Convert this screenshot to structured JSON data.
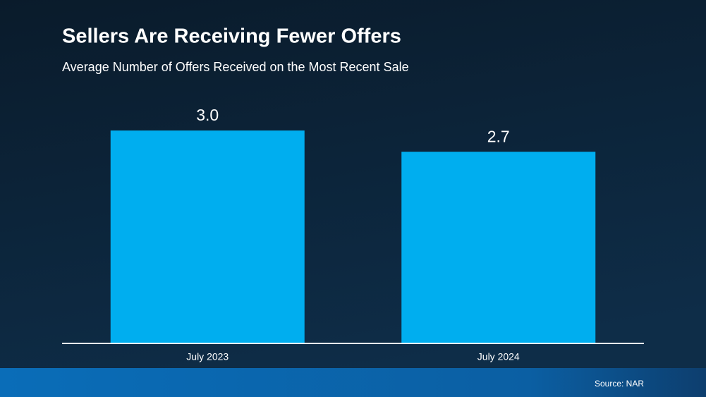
{
  "chart_data": {
    "type": "bar",
    "title": "Sellers Are Receiving Fewer Offers",
    "subtitle": "Average Number of Offers Received on the Most Recent Sale",
    "categories": [
      "July 2023",
      "July 2024"
    ],
    "values": [
      3.0,
      2.7
    ],
    "value_labels": [
      "3.0",
      "2.7"
    ],
    "color": "#00aeef",
    "source": "Source: NAR"
  }
}
